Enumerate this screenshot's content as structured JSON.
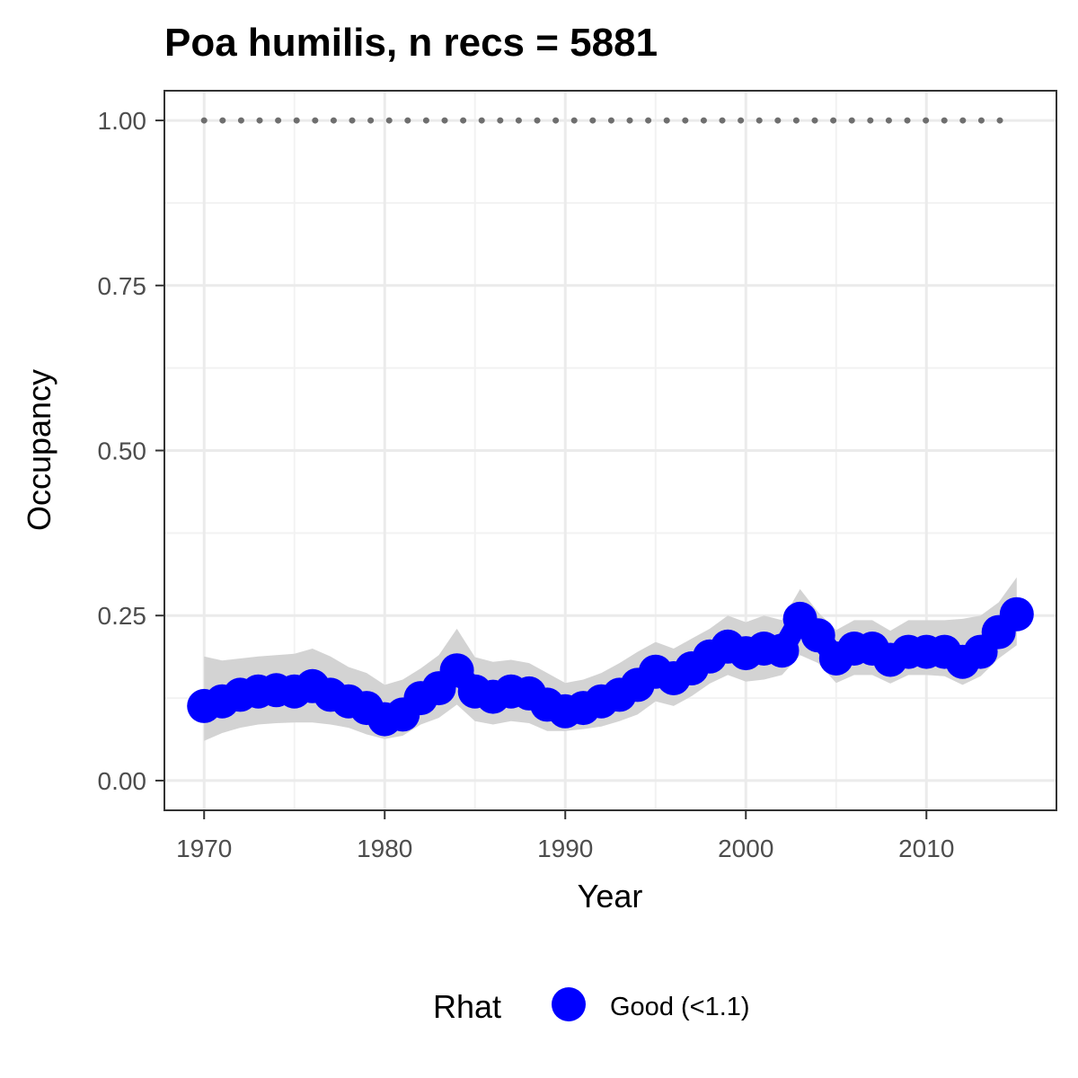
{
  "chart_data": {
    "type": "line",
    "title": "Poa humilis, n recs = 5881",
    "xlabel": "Year",
    "ylabel": "Occupancy",
    "xlim": [
      1967.8,
      2017.2
    ],
    "ylim": [
      -0.045,
      1.045
    ],
    "x_ticks": [
      1970,
      1980,
      1990,
      2000,
      2010
    ],
    "x_tick_labels": [
      "1970",
      "1980",
      "1990",
      "2000",
      "2010"
    ],
    "y_ticks": [
      0,
      0.25,
      0.5,
      0.75,
      1
    ],
    "y_tick_labels": [
      "0.00",
      "0.25",
      "0.50",
      "0.75",
      "1.00"
    ],
    "grid": true,
    "x": [
      1970,
      1971,
      1972,
      1973,
      1974,
      1975,
      1976,
      1977,
      1978,
      1979,
      1980,
      1981,
      1982,
      1983,
      1984,
      1985,
      1986,
      1987,
      1988,
      1989,
      1990,
      1991,
      1992,
      1993,
      1994,
      1995,
      1996,
      1997,
      1998,
      1999,
      2000,
      2001,
      2002,
      2003,
      2004,
      2005,
      2006,
      2007,
      2008,
      2009,
      2010,
      2011,
      2012,
      2013,
      2014,
      2015
    ],
    "series": [
      {
        "name": "Occupancy",
        "rhat": "Good (<1.1)",
        "color": "#0000ff",
        "values": [
          0.113,
          0.12,
          0.13,
          0.135,
          0.137,
          0.135,
          0.143,
          0.13,
          0.12,
          0.11,
          0.093,
          0.1,
          0.125,
          0.14,
          0.167,
          0.135,
          0.127,
          0.135,
          0.132,
          0.115,
          0.105,
          0.11,
          0.12,
          0.13,
          0.145,
          0.165,
          0.155,
          0.17,
          0.188,
          0.203,
          0.193,
          0.2,
          0.197,
          0.245,
          0.22,
          0.185,
          0.2,
          0.2,
          0.183,
          0.195,
          0.195,
          0.195,
          0.18,
          0.195,
          0.225,
          0.252
        ],
        "lower": [
          0.06,
          0.072,
          0.08,
          0.085,
          0.087,
          0.088,
          0.088,
          0.085,
          0.08,
          0.07,
          0.063,
          0.068,
          0.085,
          0.095,
          0.115,
          0.09,
          0.085,
          0.09,
          0.087,
          0.075,
          0.075,
          0.078,
          0.082,
          0.09,
          0.1,
          0.12,
          0.113,
          0.128,
          0.147,
          0.16,
          0.15,
          0.153,
          0.16,
          0.19,
          0.178,
          0.148,
          0.16,
          0.16,
          0.147,
          0.16,
          0.16,
          0.158,
          0.145,
          0.158,
          0.185,
          0.205
        ],
        "upper": [
          0.188,
          0.182,
          0.185,
          0.188,
          0.19,
          0.192,
          0.2,
          0.188,
          0.172,
          0.163,
          0.145,
          0.153,
          0.17,
          0.19,
          0.23,
          0.187,
          0.18,
          0.183,
          0.178,
          0.163,
          0.148,
          0.153,
          0.163,
          0.178,
          0.195,
          0.21,
          0.2,
          0.215,
          0.23,
          0.25,
          0.24,
          0.25,
          0.243,
          0.29,
          0.255,
          0.228,
          0.243,
          0.243,
          0.227,
          0.243,
          0.243,
          0.243,
          0.245,
          0.25,
          0.27,
          0.308
        ]
      }
    ],
    "reference_line": {
      "y": 1.0,
      "style": "dotted",
      "color": "#6e6e6e"
    },
    "legend": {
      "title": "Rhat",
      "entries": [
        {
          "label": "Good (<1.1)",
          "color": "#0000ff"
        }
      ],
      "position": "bottom"
    },
    "colors": {
      "ribbon": "#d3d3d3",
      "panel_border": "#333333",
      "grid_major": "#ebebeb",
      "grid_minor": "#f2f2f2"
    }
  }
}
